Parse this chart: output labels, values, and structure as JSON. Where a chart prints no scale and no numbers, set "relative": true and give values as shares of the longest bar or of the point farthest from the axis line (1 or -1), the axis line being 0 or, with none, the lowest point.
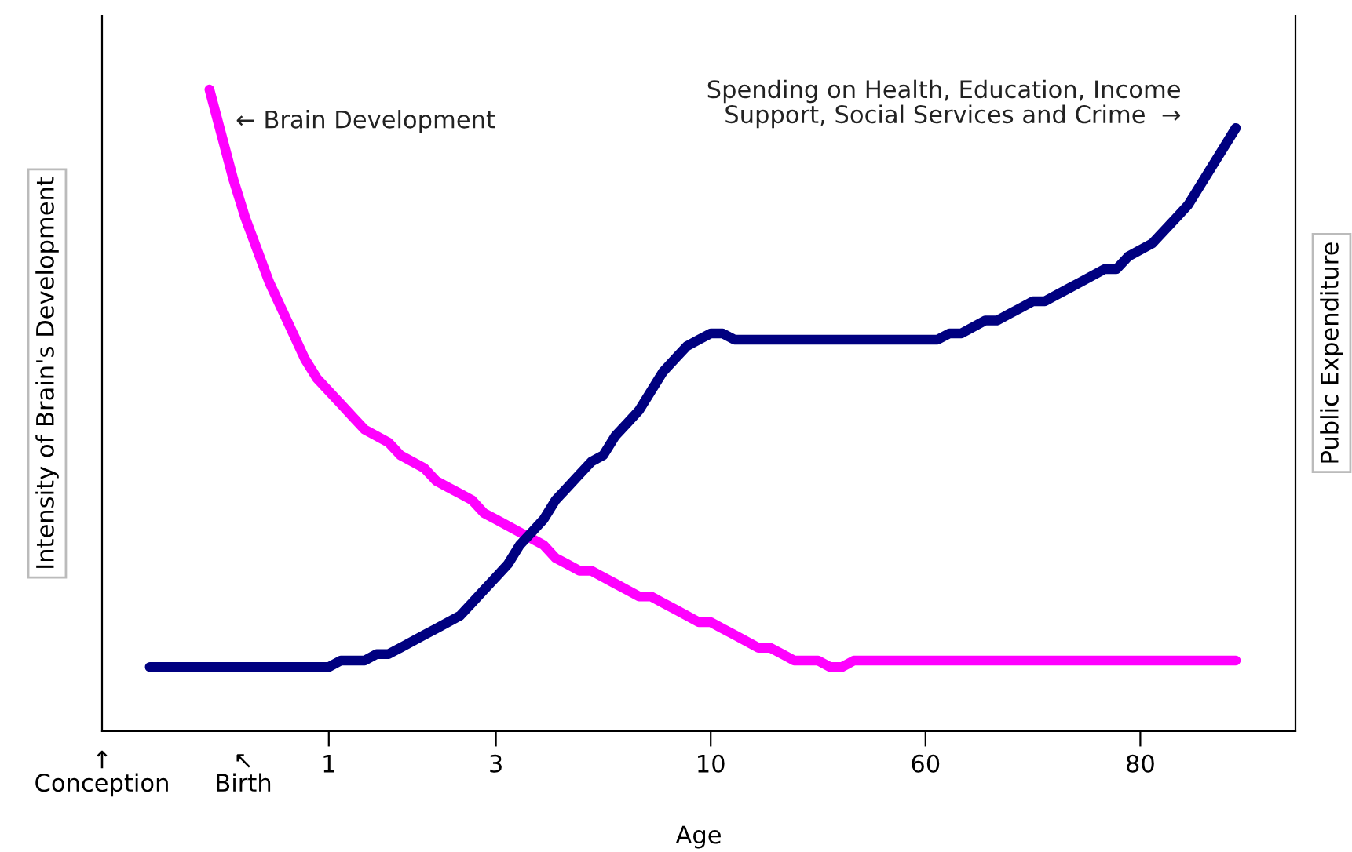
{
  "chart_data": {
    "type": "line",
    "relative": true,
    "xlabel": "Age",
    "ylabel": "Intensity of Brain's Development",
    "y2label": "Public Expenditure",
    "categories": [
      null,
      null,
      null,
      null,
      null,
      null,
      null,
      null,
      null,
      null,
      null,
      null,
      null,
      null,
      null,
      null,
      null,
      null,
      null,
      "1",
      null,
      null,
      null,
      null,
      null,
      null,
      null,
      null,
      null,
      null,
      null,
      null,
      null,
      "3",
      null,
      null,
      null,
      null,
      null,
      null,
      null,
      null,
      null,
      null,
      null,
      null,
      null,
      null,
      null,
      null,
      null,
      "10",
      null,
      null,
      null,
      null,
      null,
      null,
      null,
      null,
      null,
      null,
      null,
      null,
      null,
      null,
      null,
      null,
      null,
      "60",
      null,
      null,
      null,
      null,
      null,
      null,
      null,
      null,
      null,
      null,
      null,
      null,
      null,
      null,
      null,
      null,
      null,
      "80",
      null,
      null,
      null,
      null,
      null,
      null,
      null,
      null,
      null,
      null,
      null,
      null,
      null
    ],
    "tick_labels": "x",
    "series": [
      {
        "name": "← Brain Development",
        "color": "#ff00ff",
        "values": [
          null,
          null,
          null,
          null,
          null,
          null,
          null,
          null,
          null,
          1.0,
          0.93,
          0.86,
          0.8,
          0.75,
          0.7,
          0.66,
          0.62,
          0.58,
          0.55,
          0.53,
          0.51,
          0.49,
          0.47,
          0.46,
          0.45,
          0.43,
          0.42,
          0.41,
          0.39,
          0.38,
          0.37,
          0.36,
          0.34,
          0.33,
          0.32,
          0.31,
          0.3,
          0.29,
          0.27,
          0.26,
          0.25,
          0.25,
          0.24,
          0.23,
          0.22,
          0.21,
          0.21,
          0.2,
          0.19,
          0.18,
          0.17,
          0.17,
          0.16,
          0.15,
          0.14,
          0.13,
          0.13,
          0.12,
          0.11,
          0.11,
          0.11,
          0.1,
          0.1,
          0.11,
          0.11,
          0.11,
          0.11,
          0.11,
          0.11,
          0.11,
          0.11,
          0.11,
          0.11,
          0.11,
          0.11,
          0.11,
          0.11,
          0.11,
          0.11,
          0.11,
          0.11,
          0.11,
          0.11,
          0.11,
          0.11,
          0.11,
          0.11,
          0.11,
          0.11,
          0.11,
          0.11,
          0.11,
          0.11,
          0.11,
          0.11,
          0.11,
          null,
          null,
          null,
          null,
          null
        ]
      },
      {
        "name": "Spending on Health, Education, Income\nSupport, Social Services and Crime  →",
        "color": "#000080",
        "values": [
          null,
          null,
          null,
          null,
          0.1,
          0.1,
          0.1,
          0.1,
          0.1,
          0.1,
          0.1,
          0.1,
          0.1,
          0.1,
          0.1,
          0.1,
          0.1,
          0.1,
          0.1,
          0.1,
          0.11,
          0.11,
          0.11,
          0.12,
          0.12,
          0.13,
          0.14,
          0.15,
          0.16,
          0.17,
          0.18,
          0.2,
          0.22,
          0.24,
          0.26,
          0.29,
          0.31,
          0.33,
          0.36,
          0.38,
          0.4,
          0.42,
          0.43,
          0.46,
          0.48,
          0.5,
          0.53,
          0.56,
          0.58,
          0.6,
          0.61,
          0.62,
          0.62,
          0.61,
          0.61,
          0.61,
          0.61,
          0.61,
          0.61,
          0.61,
          0.61,
          0.61,
          0.61,
          0.61,
          0.61,
          0.61,
          0.61,
          0.61,
          0.61,
          0.61,
          0.61,
          0.62,
          0.62,
          0.63,
          0.64,
          0.64,
          0.65,
          0.66,
          0.67,
          0.67,
          0.68,
          0.69,
          0.7,
          0.71,
          0.72,
          0.72,
          0.74,
          0.75,
          0.76,
          0.78,
          0.8,
          0.82,
          0.85,
          0.88,
          0.91,
          0.94,
          null,
          null,
          null,
          null,
          null
        ]
      }
    ],
    "annotations": [
      "↑\nConception",
      "↖\nBirth"
    ]
  }
}
